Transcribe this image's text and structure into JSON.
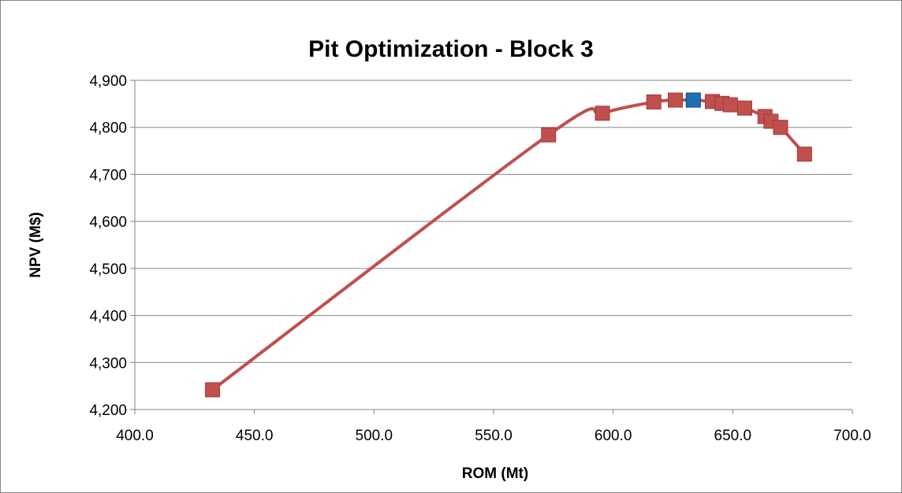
{
  "chart_data": {
    "type": "scatter",
    "title": "Pit Optimization - Block 3",
    "xlabel": "ROM (Mt)",
    "ylabel": "NPV (M$)",
    "xlim": [
      400,
      700
    ],
    "ylim": [
      4200,
      4900
    ],
    "x_ticks": [
      400,
      450,
      500,
      550,
      600,
      650,
      700
    ],
    "x_tick_labels": [
      "400.0",
      "450.0",
      "500.0",
      "550.0",
      "600.0",
      "650.0",
      "700.0"
    ],
    "y_ticks": [
      4200,
      4300,
      4400,
      4500,
      4600,
      4700,
      4800,
      4900
    ],
    "y_tick_labels": [
      "4,200",
      "4,300",
      "4,400",
      "4,500",
      "4,600",
      "4,700",
      "4,800",
      "4,900"
    ],
    "grid": "horizontal",
    "legend": "none",
    "line_style": "smoothed",
    "series": [
      {
        "color": "#C0504D",
        "marker": "square",
        "points": [
          {
            "x": 432.5,
            "y": 4242
          },
          {
            "x": 573.0,
            "y": 4784
          },
          {
            "x": 595.5,
            "y": 4830
          },
          {
            "x": 617.0,
            "y": 4854
          },
          {
            "x": 626.0,
            "y": 4858
          },
          {
            "x": 633.5,
            "y": 4858,
            "highlight": true
          },
          {
            "x": 641.5,
            "y": 4855
          },
          {
            "x": 645.5,
            "y": 4851
          },
          {
            "x": 649.0,
            "y": 4848
          },
          {
            "x": 655.0,
            "y": 4841
          },
          {
            "x": 663.5,
            "y": 4823
          },
          {
            "x": 666.0,
            "y": 4813
          },
          {
            "x": 670.0,
            "y": 4800
          },
          {
            "x": 680.0,
            "y": 4743
          }
        ]
      }
    ],
    "highlight_color": "#1F6FB4",
    "highlight_border": "#0F3F7A",
    "marker_border": "#A33A37"
  }
}
